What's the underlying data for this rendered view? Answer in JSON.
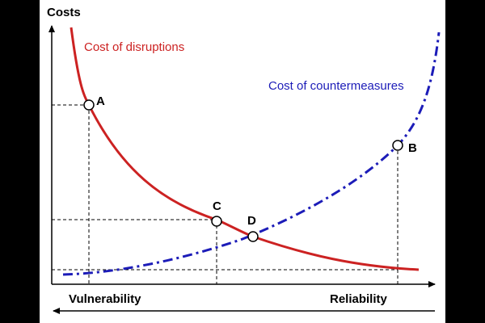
{
  "diagram": {
    "y_axis_label": "Costs",
    "x_left_label": "Vulnerability",
    "x_right_label": "Reliability",
    "curves": {
      "disruptions": {
        "label": "Cost of disruptions",
        "color": "#cc2222"
      },
      "countermeasures": {
        "label": "Cost of countermeasures",
        "color": "#1c1cb8"
      }
    },
    "points": {
      "A": "A",
      "B": "B",
      "C": "C",
      "D": "D"
    }
  }
}
